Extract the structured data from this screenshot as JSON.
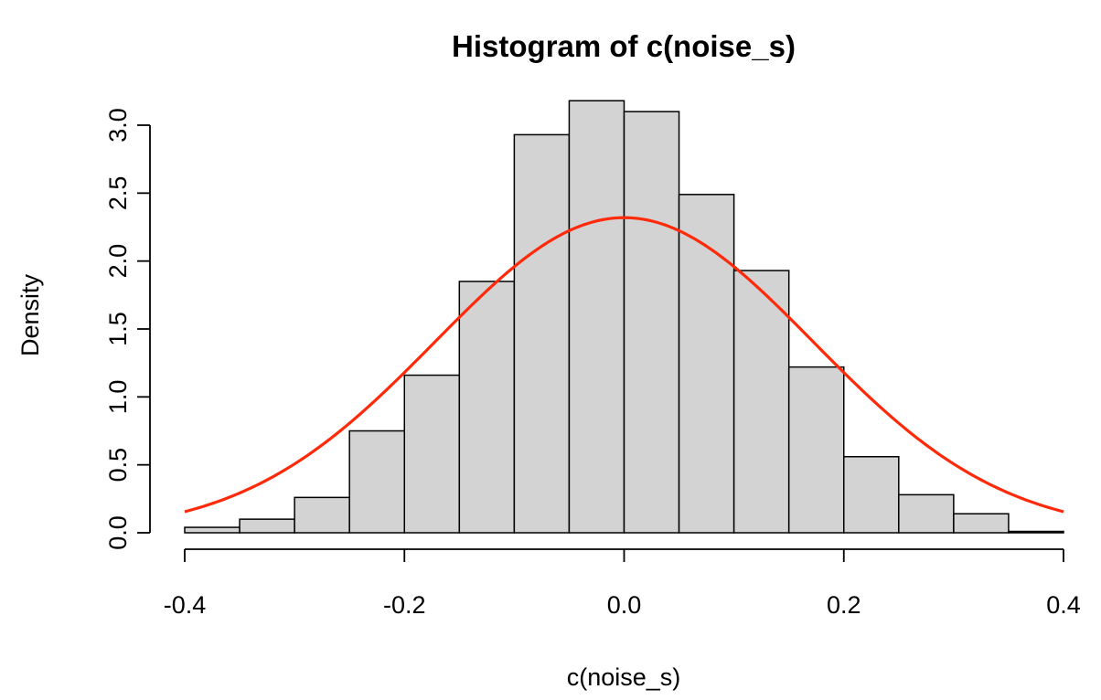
{
  "chart_data": {
    "type": "bar",
    "title": "Histogram of c(noise_s)",
    "xlabel": "c(noise_s)",
    "ylabel": "Density",
    "xlim": [
      -0.4,
      0.4
    ],
    "ylim": [
      0,
      3.2
    ],
    "x_ticks": [
      -0.4,
      -0.2,
      0.0,
      0.2,
      0.4
    ],
    "x_tick_labels": [
      "-0.4",
      "-0.2",
      "0.0",
      "0.2",
      "0.4"
    ],
    "y_ticks": [
      0.0,
      0.5,
      1.0,
      1.5,
      2.0,
      2.5,
      3.0
    ],
    "y_tick_labels": [
      "0.0",
      "0.5",
      "1.0",
      "1.5",
      "2.0",
      "2.5",
      "3.0"
    ],
    "grid": false,
    "bin_edges": [
      -0.4,
      -0.35,
      -0.3,
      -0.25,
      -0.2,
      -0.15,
      -0.1,
      -0.05,
      0.0,
      0.05,
      0.1,
      0.15,
      0.2,
      0.25,
      0.3,
      0.35,
      0.4
    ],
    "values": [
      0.04,
      0.1,
      0.26,
      0.75,
      1.16,
      1.85,
      2.93,
      3.18,
      3.1,
      2.49,
      1.93,
      1.22,
      0.56,
      0.28,
      0.14,
      0.01
    ],
    "bar_color": "#d3d3d3",
    "overlay_curve": {
      "type": "normal_density",
      "mean": 0.0,
      "sd": 0.172,
      "color": "#ff2a0a"
    }
  }
}
